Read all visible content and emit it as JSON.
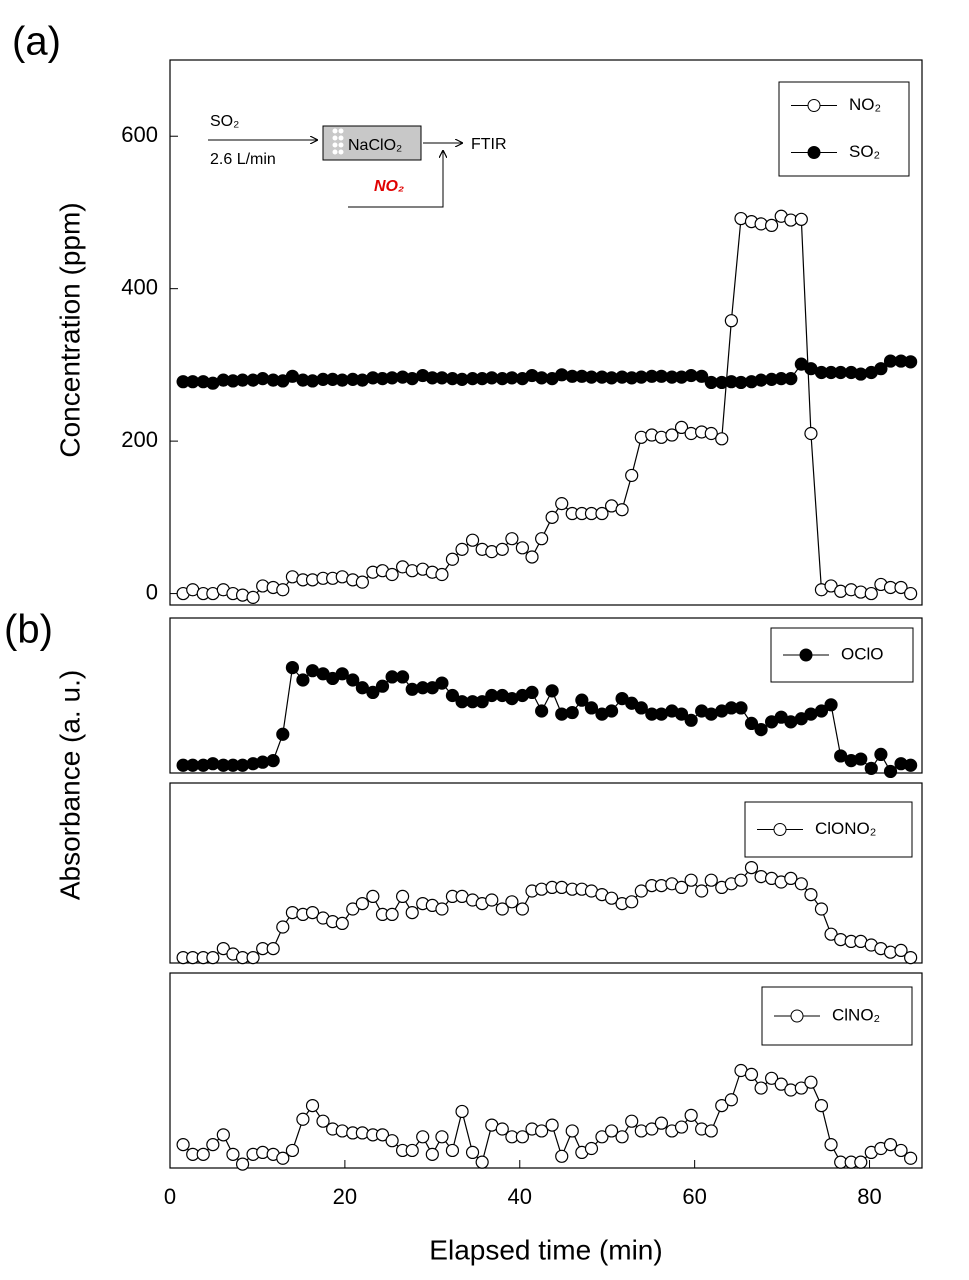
{
  "chart_data": [
    {
      "type": "line",
      "label": "(a)",
      "ylabel": "Concentration (ppm)",
      "inset": {
        "inlet": "SO₂",
        "flow": "2.6 L/min",
        "reactor": "NaClO₂",
        "outlet": "FTIR",
        "additive": "NO₂"
      },
      "xlim": [
        0,
        86
      ],
      "ylim": [
        -15,
        700
      ],
      "yticks": [
        0,
        200,
        400,
        600
      ],
      "legend": "upper right",
      "x": [
        1.5,
        2.6,
        3.8,
        4.9,
        6.1,
        7.2,
        8.3,
        9.5,
        10.6,
        11.8,
        12.9,
        14.0,
        15.2,
        16.3,
        17.5,
        18.6,
        19.7,
        20.9,
        22.0,
        23.2,
        24.3,
        25.4,
        26.6,
        27.7,
        28.9,
        30.0,
        31.1,
        32.3,
        33.4,
        34.6,
        35.7,
        36.8,
        38.0,
        39.1,
        40.3,
        41.4,
        42.5,
        43.7,
        44.8,
        46.0,
        47.1,
        48.2,
        49.4,
        50.5,
        51.7,
        52.8,
        53.9,
        55.1,
        56.2,
        57.4,
        58.5,
        59.6,
        60.8,
        61.9,
        63.1,
        64.2,
        65.3,
        66.5,
        67.6,
        68.8,
        69.9,
        71.0,
        72.2,
        73.3,
        74.5,
        75.6,
        76.7,
        77.9,
        79.0,
        80.2,
        81.3,
        82.4,
        83.6,
        84.7
      ],
      "series": [
        {
          "name": "NO₂",
          "color": "#000000",
          "fill": "#ffffff",
          "values": [
            0,
            5,
            0,
            0,
            5,
            0,
            -2,
            -5,
            10,
            8,
            5,
            22,
            18,
            18,
            20,
            20,
            22,
            18,
            15,
            28,
            30,
            25,
            35,
            30,
            32,
            28,
            25,
            45,
            58,
            70,
            58,
            55,
            58,
            72,
            60,
            48,
            72,
            100,
            118,
            105,
            105,
            105,
            105,
            115,
            110,
            155,
            205,
            208,
            205,
            208,
            218,
            210,
            212,
            210,
            203,
            358,
            492,
            488,
            485,
            483,
            495,
            490,
            491,
            210,
            5,
            10,
            3,
            5,
            2,
            0,
            12,
            8,
            8,
            0
          ]
        },
        {
          "name": "SO₂",
          "color": "#000000",
          "fill": "#000000",
          "values": [
            278,
            278,
            278,
            276,
            280,
            279,
            280,
            280,
            282,
            280,
            279,
            285,
            280,
            279,
            281,
            281,
            280,
            281,
            280,
            283,
            282,
            283,
            284,
            282,
            286,
            283,
            283,
            282,
            281,
            282,
            282,
            283,
            282,
            283,
            282,
            286,
            283,
            282,
            287,
            285,
            285,
            284,
            284,
            283,
            284,
            283,
            284,
            285,
            285,
            284,
            284,
            286,
            285,
            277,
            277,
            278,
            277,
            278,
            280,
            281,
            282,
            282,
            301,
            295,
            290,
            290,
            290,
            290,
            288,
            290,
            295,
            305,
            305,
            304
          ]
        }
      ]
    },
    {
      "type": "line",
      "label": "(b)",
      "ylabel": "Absorbance (a. u.)",
      "xlim": [
        0,
        86
      ],
      "ylim": [
        0,
        1
      ],
      "legend": "upper right",
      "x": [
        1.5,
        2.6,
        3.8,
        4.9,
        6.1,
        7.2,
        8.3,
        9.5,
        10.6,
        11.8,
        12.9,
        14.0,
        15.2,
        16.3,
        17.5,
        18.6,
        19.7,
        20.9,
        22.0,
        23.2,
        24.3,
        25.4,
        26.6,
        27.7,
        28.9,
        30.0,
        31.1,
        32.3,
        33.4,
        34.6,
        35.7,
        36.8,
        38.0,
        39.1,
        40.3,
        41.4,
        42.5,
        43.7,
        44.8,
        46.0,
        47.1,
        48.2,
        49.4,
        50.5,
        51.7,
        52.8,
        53.9,
        55.1,
        56.2,
        57.4,
        58.5,
        59.6,
        60.8,
        61.9,
        63.1,
        64.2,
        65.3,
        66.5,
        67.6,
        68.8,
        69.9,
        71.0,
        72.2,
        73.3,
        74.5,
        75.6,
        76.7,
        77.9,
        79.0,
        80.2,
        81.3,
        82.4,
        83.6,
        84.7
      ],
      "series": [
        {
          "name": "OClO",
          "color": "#000000",
          "fill": "#000000",
          "values": [
            0.05,
            0.05,
            0.05,
            0.06,
            0.05,
            0.05,
            0.05,
            0.06,
            0.07,
            0.08,
            0.25,
            0.68,
            0.6,
            0.66,
            0.64,
            0.61,
            0.64,
            0.6,
            0.55,
            0.52,
            0.56,
            0.62,
            0.62,
            0.54,
            0.55,
            0.55,
            0.58,
            0.5,
            0.46,
            0.46,
            0.46,
            0.5,
            0.5,
            0.48,
            0.5,
            0.52,
            0.4,
            0.53,
            0.38,
            0.39,
            0.47,
            0.42,
            0.38,
            0.4,
            0.48,
            0.45,
            0.42,
            0.38,
            0.38,
            0.4,
            0.38,
            0.34,
            0.4,
            0.38,
            0.4,
            0.42,
            0.42,
            0.32,
            0.28,
            0.33,
            0.36,
            0.33,
            0.35,
            0.38,
            0.4,
            0.44,
            0.11,
            0.08,
            0.09,
            0.03,
            0.12,
            0.01,
            0.06,
            0.05
          ]
        }
      ]
    },
    {
      "type": "line",
      "xlim": [
        0,
        86
      ],
      "ylim": [
        0,
        1
      ],
      "legend": "upper right",
      "x": [
        1.5,
        2.6,
        3.8,
        4.9,
        6.1,
        7.2,
        8.3,
        9.5,
        10.6,
        11.8,
        12.9,
        14.0,
        15.2,
        16.3,
        17.5,
        18.6,
        19.7,
        20.9,
        22.0,
        23.2,
        24.3,
        25.4,
        26.6,
        27.7,
        28.9,
        30.0,
        31.1,
        32.3,
        33.4,
        34.6,
        35.7,
        36.8,
        38.0,
        39.1,
        40.3,
        41.4,
        42.5,
        43.7,
        44.8,
        46.0,
        47.1,
        48.2,
        49.4,
        50.5,
        51.7,
        52.8,
        53.9,
        55.1,
        56.2,
        57.4,
        58.5,
        59.6,
        60.8,
        61.9,
        63.1,
        64.2,
        65.3,
        66.5,
        67.6,
        68.8,
        69.9,
        71.0,
        72.2,
        73.3,
        74.5,
        75.6,
        76.7,
        77.9,
        79.0,
        80.2,
        81.3,
        82.4,
        83.6,
        84.7
      ],
      "series": [
        {
          "name": "ClONO₂",
          "color": "#000000",
          "fill": "#ffffff",
          "values": [
            0.03,
            0.03,
            0.03,
            0.03,
            0.08,
            0.05,
            0.03,
            0.03,
            0.08,
            0.08,
            0.2,
            0.28,
            0.27,
            0.28,
            0.25,
            0.23,
            0.22,
            0.3,
            0.33,
            0.37,
            0.27,
            0.27,
            0.37,
            0.28,
            0.33,
            0.32,
            0.3,
            0.37,
            0.37,
            0.35,
            0.33,
            0.35,
            0.3,
            0.34,
            0.3,
            0.4,
            0.41,
            0.42,
            0.42,
            0.41,
            0.41,
            0.4,
            0.38,
            0.36,
            0.33,
            0.34,
            0.4,
            0.43,
            0.43,
            0.44,
            0.42,
            0.46,
            0.4,
            0.46,
            0.42,
            0.44,
            0.46,
            0.53,
            0.48,
            0.47,
            0.45,
            0.47,
            0.44,
            0.38,
            0.3,
            0.16,
            0.13,
            0.12,
            0.12,
            0.1,
            0.08,
            0.06,
            0.07,
            0.03
          ]
        }
      ]
    },
    {
      "type": "line",
      "xlabel": "Elapsed time (min)",
      "xlim": [
        0,
        86
      ],
      "ylim": [
        0,
        1
      ],
      "xticks": [
        0,
        20,
        40,
        60,
        80
      ],
      "legend": "upper right",
      "x": [
        1.5,
        2.6,
        3.8,
        4.9,
        6.1,
        7.2,
        8.3,
        9.5,
        10.6,
        11.8,
        12.9,
        14.0,
        15.2,
        16.3,
        17.5,
        18.6,
        19.7,
        20.9,
        22.0,
        23.2,
        24.3,
        25.4,
        26.6,
        27.7,
        28.9,
        30.0,
        31.1,
        32.3,
        33.4,
        34.6,
        35.7,
        36.8,
        38.0,
        39.1,
        40.3,
        41.4,
        42.5,
        43.7,
        44.8,
        46.0,
        47.1,
        48.2,
        49.4,
        50.5,
        51.7,
        52.8,
        53.9,
        55.1,
        56.2,
        57.4,
        58.5,
        59.6,
        60.8,
        61.9,
        63.1,
        64.2,
        65.3,
        66.5,
        67.6,
        68.8,
        69.9,
        71.0,
        72.2,
        73.3,
        74.5,
        75.6,
        76.7,
        77.9,
        79.0,
        80.2,
        81.3,
        82.4,
        83.6,
        84.7
      ],
      "series": [
        {
          "name": "ClNO₂",
          "color": "#000000",
          "fill": "#ffffff",
          "values": [
            0.12,
            0.07,
            0.07,
            0.12,
            0.17,
            0.07,
            0.02,
            0.07,
            0.08,
            0.07,
            0.05,
            0.09,
            0.25,
            0.32,
            0.24,
            0.2,
            0.19,
            0.18,
            0.18,
            0.17,
            0.17,
            0.14,
            0.09,
            0.09,
            0.16,
            0.07,
            0.16,
            0.09,
            0.29,
            0.08,
            0.03,
            0.22,
            0.2,
            0.16,
            0.16,
            0.2,
            0.19,
            0.22,
            0.06,
            0.19,
            0.08,
            0.1,
            0.16,
            0.19,
            0.16,
            0.24,
            0.19,
            0.2,
            0.23,
            0.19,
            0.21,
            0.27,
            0.2,
            0.19,
            0.32,
            0.35,
            0.5,
            0.48,
            0.41,
            0.46,
            0.43,
            0.4,
            0.41,
            0.44,
            0.32,
            0.12,
            0.03,
            0.03,
            0.03,
            0.08,
            0.1,
            0.12,
            0.09,
            0.05
          ]
        }
      ]
    }
  ]
}
